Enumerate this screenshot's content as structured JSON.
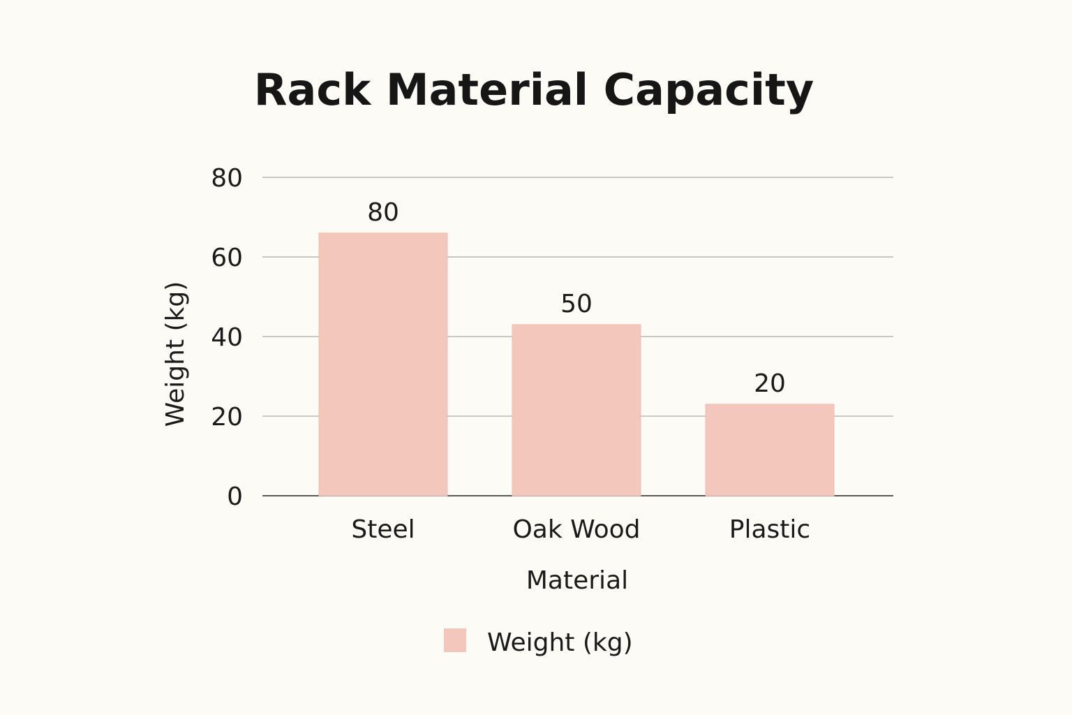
{
  "chart_data": {
    "type": "bar",
    "title": "Rack Material Capacity",
    "xlabel": "Material",
    "ylabel": "Weight (kg)",
    "categories": [
      "Steel",
      "Oak Wood",
      "Plastic"
    ],
    "series": [
      {
        "name": "Weight (kg)",
        "values": [
          80,
          50,
          20
        ],
        "bar_levels": [
          66,
          43,
          23
        ],
        "color": "#f3c7bc"
      }
    ],
    "ylim": [
      0,
      80
    ],
    "yticks": [
      0,
      20,
      40,
      60,
      80
    ],
    "grid": true,
    "legend": "bottom-center"
  }
}
